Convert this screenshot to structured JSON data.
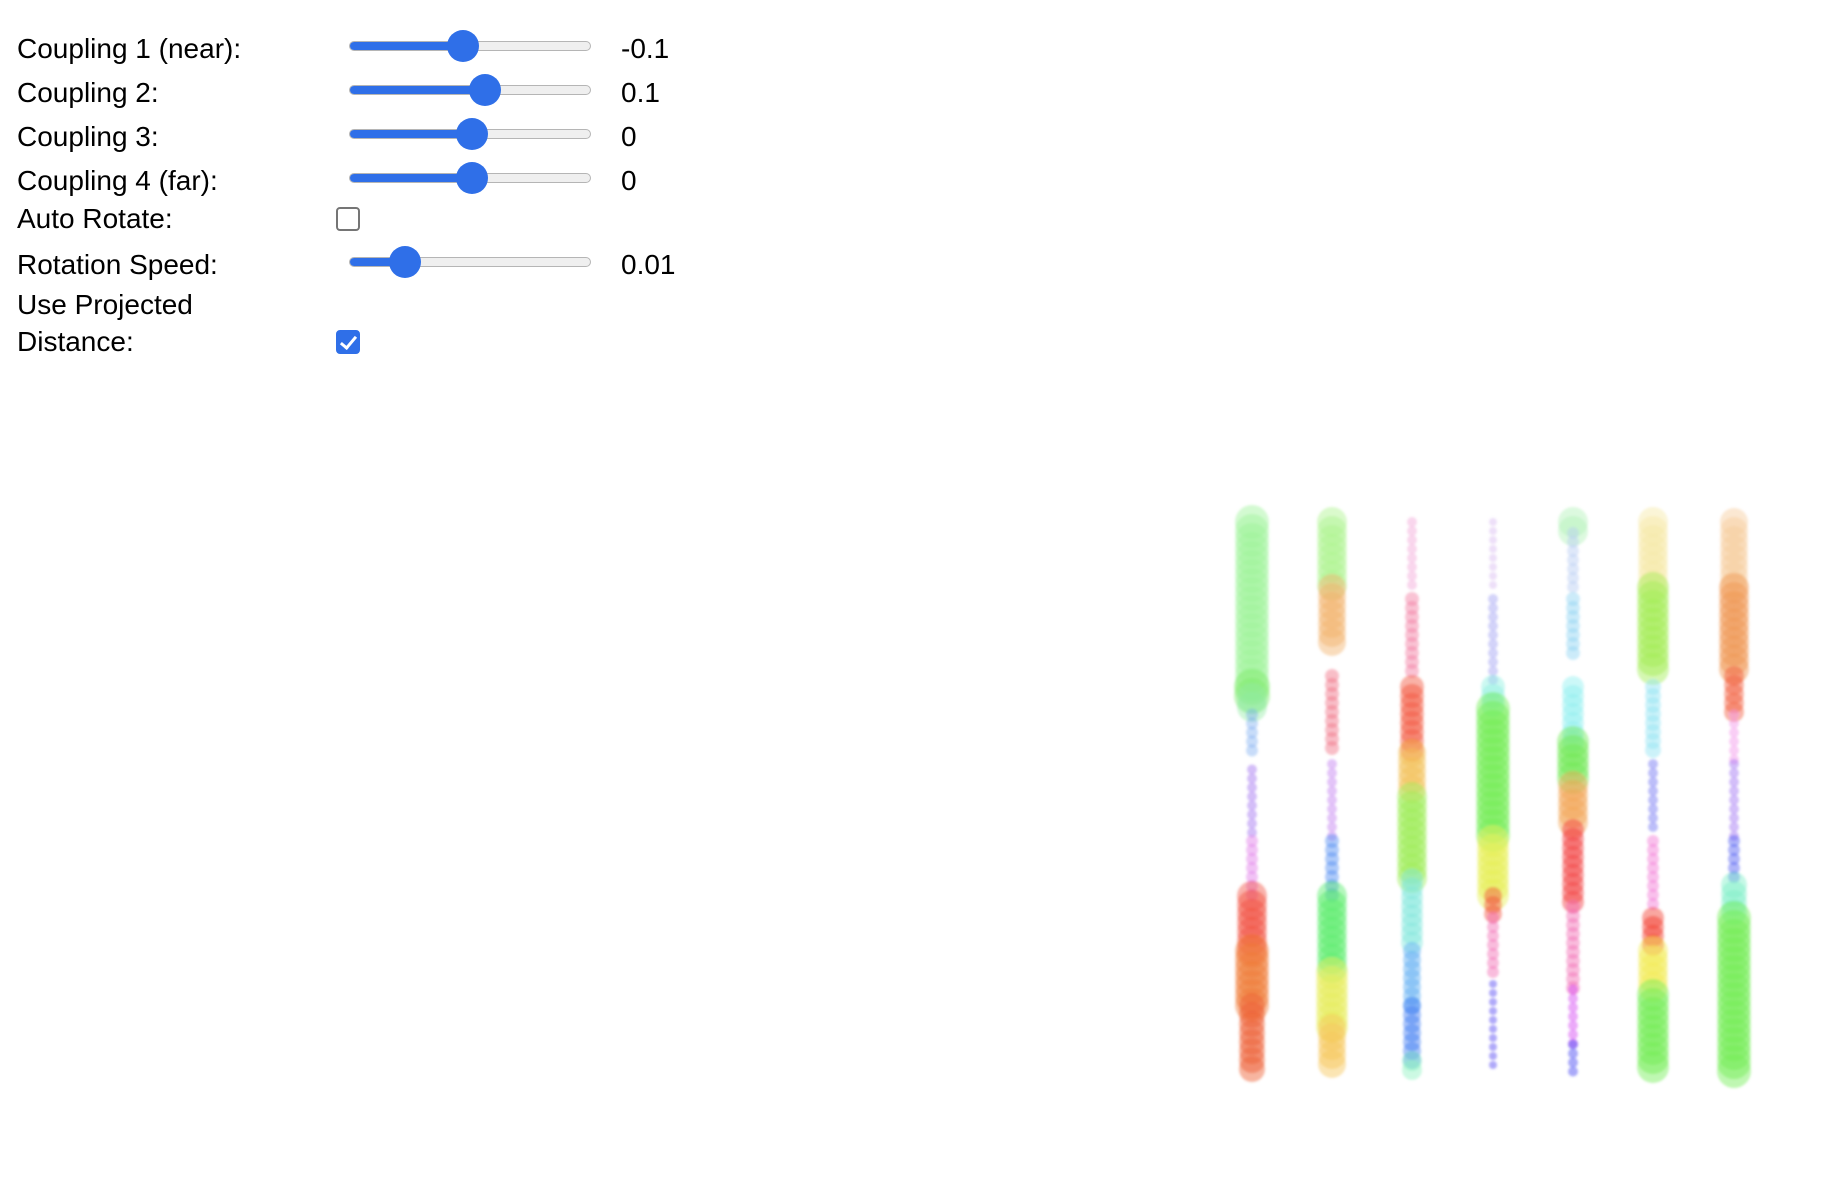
{
  "controls": {
    "coupling1": {
      "label": "Coupling 1 (near):",
      "value": "-0.1",
      "position": 0.47
    },
    "coupling2": {
      "label": "Coupling 2:",
      "value": "0.1",
      "position": 0.56
    },
    "coupling3": {
      "label": "Coupling 3:",
      "value": "0",
      "position": 0.51
    },
    "coupling4": {
      "label": "Coupling 4 (far):",
      "value": "0",
      "position": 0.51
    },
    "auto_rotate": {
      "label": "Auto Rotate:",
      "checked": false
    },
    "rotation_speed": {
      "label": "Rotation Speed:",
      "value": "0.01",
      "position": 0.23
    },
    "use_projected_distance": {
      "label": "Use Projected Distance:",
      "checked": true
    }
  },
  "colors": {
    "accent": "#2f6fe8"
  },
  "visualization": {
    "columns": [
      {
        "segments": [
          [
            "#9df59a",
            0.0,
            0.3,
            34,
            1.0
          ],
          [
            "#7fea6a",
            0.3,
            0.32,
            36,
            1.0
          ],
          [
            "#8ee9a0",
            0.32,
            0.35,
            30,
            0.9
          ],
          [
            "#6ea2f0",
            0.35,
            0.42,
            12,
            0.85
          ],
          [
            "#a06ef0",
            0.45,
            0.58,
            10,
            1.0
          ],
          [
            "#e07ae8",
            0.58,
            0.68,
            12,
            1.0
          ],
          [
            "#f24a3a",
            0.68,
            0.78,
            30,
            0.95
          ],
          [
            "#f07a32",
            0.78,
            0.88,
            34,
            1.0
          ],
          [
            "#ee5a2e",
            0.88,
            1.0,
            26,
            1.0
          ]
        ]
      },
      {
        "segments": [
          [
            "#aef58e",
            0.0,
            0.12,
            30,
            1.0
          ],
          [
            "#f2b26a",
            0.12,
            0.23,
            28,
            1.0
          ],
          [
            "#f06e82",
            0.28,
            0.42,
            14,
            1.0
          ],
          [
            "#c27cf0",
            0.44,
            0.58,
            10,
            1.0
          ],
          [
            "#4f8cf2",
            0.58,
            0.68,
            14,
            1.0
          ],
          [
            "#58ee6a",
            0.68,
            0.82,
            30,
            1.0
          ],
          [
            "#e6ee58",
            0.82,
            0.92,
            32,
            1.0
          ],
          [
            "#f6c656",
            0.92,
            1.0,
            28,
            1.0
          ]
        ]
      },
      {
        "segments": [
          [
            "#f2a4d8",
            0.0,
            0.12,
            10,
            1.0
          ],
          [
            "#f27aa0",
            0.14,
            0.28,
            14,
            1.0
          ],
          [
            "#f2523a",
            0.3,
            0.42,
            24,
            1.0
          ],
          [
            "#f2be52",
            0.42,
            0.5,
            28,
            1.0
          ],
          [
            "#9cee52",
            0.5,
            0.65,
            30,
            1.0
          ],
          [
            "#7ee6dc",
            0.65,
            0.78,
            22,
            1.0
          ],
          [
            "#58aaf2",
            0.78,
            0.88,
            18,
            1.0
          ],
          [
            "#3f7cf2",
            0.88,
            0.98,
            18,
            1.0
          ],
          [
            "#8ef2c2",
            0.98,
            1.0,
            20,
            1.0
          ]
        ]
      },
      {
        "segments": [
          [
            "#d7b8f0",
            0.0,
            0.12,
            8,
            1.0
          ],
          [
            "#9e9ef2",
            0.14,
            0.3,
            10,
            1.0
          ],
          [
            "#8ef0e0",
            0.3,
            0.34,
            24,
            1.0
          ],
          [
            "#72ee52",
            0.34,
            0.58,
            34,
            1.0
          ],
          [
            "#e6f052",
            0.58,
            0.68,
            32,
            1.0
          ],
          [
            "#f2523a",
            0.68,
            0.72,
            18,
            1.0
          ],
          [
            "#f26ab4",
            0.72,
            0.82,
            12,
            1.0
          ],
          [
            "#4e3ef2",
            0.84,
            1.0,
            8,
            1.0
          ]
        ]
      },
      {
        "segments": [
          [
            "#b2f2b8",
            0.0,
            0.02,
            30,
            1.0
          ],
          [
            "#b5ccf2",
            0.02,
            0.12,
            12,
            1.0
          ],
          [
            "#8ed2f2",
            0.14,
            0.25,
            14,
            1.0
          ],
          [
            "#8ef0f0",
            0.3,
            0.4,
            22,
            1.0
          ],
          [
            "#6ee852",
            0.4,
            0.48,
            32,
            1.0
          ],
          [
            "#f2a452",
            0.48,
            0.56,
            30,
            1.0
          ],
          [
            "#f23a3a",
            0.56,
            0.7,
            22,
            1.0
          ],
          [
            "#f26ab4",
            0.7,
            0.85,
            14,
            1.0
          ],
          [
            "#d23ef2",
            0.85,
            0.95,
            10,
            1.0
          ],
          [
            "#3e42f2",
            0.95,
            1.0,
            10,
            1.0
          ]
        ]
      },
      {
        "segments": [
          [
            "#f6e8a6",
            0.0,
            0.12,
            30,
            1.0
          ],
          [
            "#a2ee52",
            0.12,
            0.28,
            32,
            1.0
          ],
          [
            "#8ee2f2",
            0.3,
            0.42,
            16,
            1.0
          ],
          [
            "#6c6ef2",
            0.44,
            0.56,
            10,
            1.0
          ],
          [
            "#f274d4",
            0.58,
            0.7,
            12,
            1.0
          ],
          [
            "#f23a2a",
            0.72,
            0.78,
            22,
            1.0
          ],
          [
            "#f2ea52",
            0.78,
            0.86,
            30,
            1.0
          ],
          [
            "#72ee52",
            0.86,
            1.0,
            32,
            1.0
          ]
        ]
      },
      {
        "segments": [
          [
            "#f6cb9c",
            0.0,
            0.12,
            28,
            1.0
          ],
          [
            "#f0944e",
            0.12,
            0.28,
            30,
            1.0
          ],
          [
            "#f25a3a",
            0.28,
            0.35,
            20,
            1.0
          ],
          [
            "#f292e8",
            0.35,
            0.44,
            10,
            1.0
          ],
          [
            "#9e6ef2",
            0.44,
            0.58,
            10,
            1.0
          ],
          [
            "#4e5af2",
            0.58,
            0.66,
            12,
            1.0
          ],
          [
            "#7ef0c8",
            0.66,
            0.72,
            26,
            1.0
          ],
          [
            "#72ee52",
            0.72,
            1.0,
            34,
            1.0
          ]
        ]
      }
    ]
  }
}
